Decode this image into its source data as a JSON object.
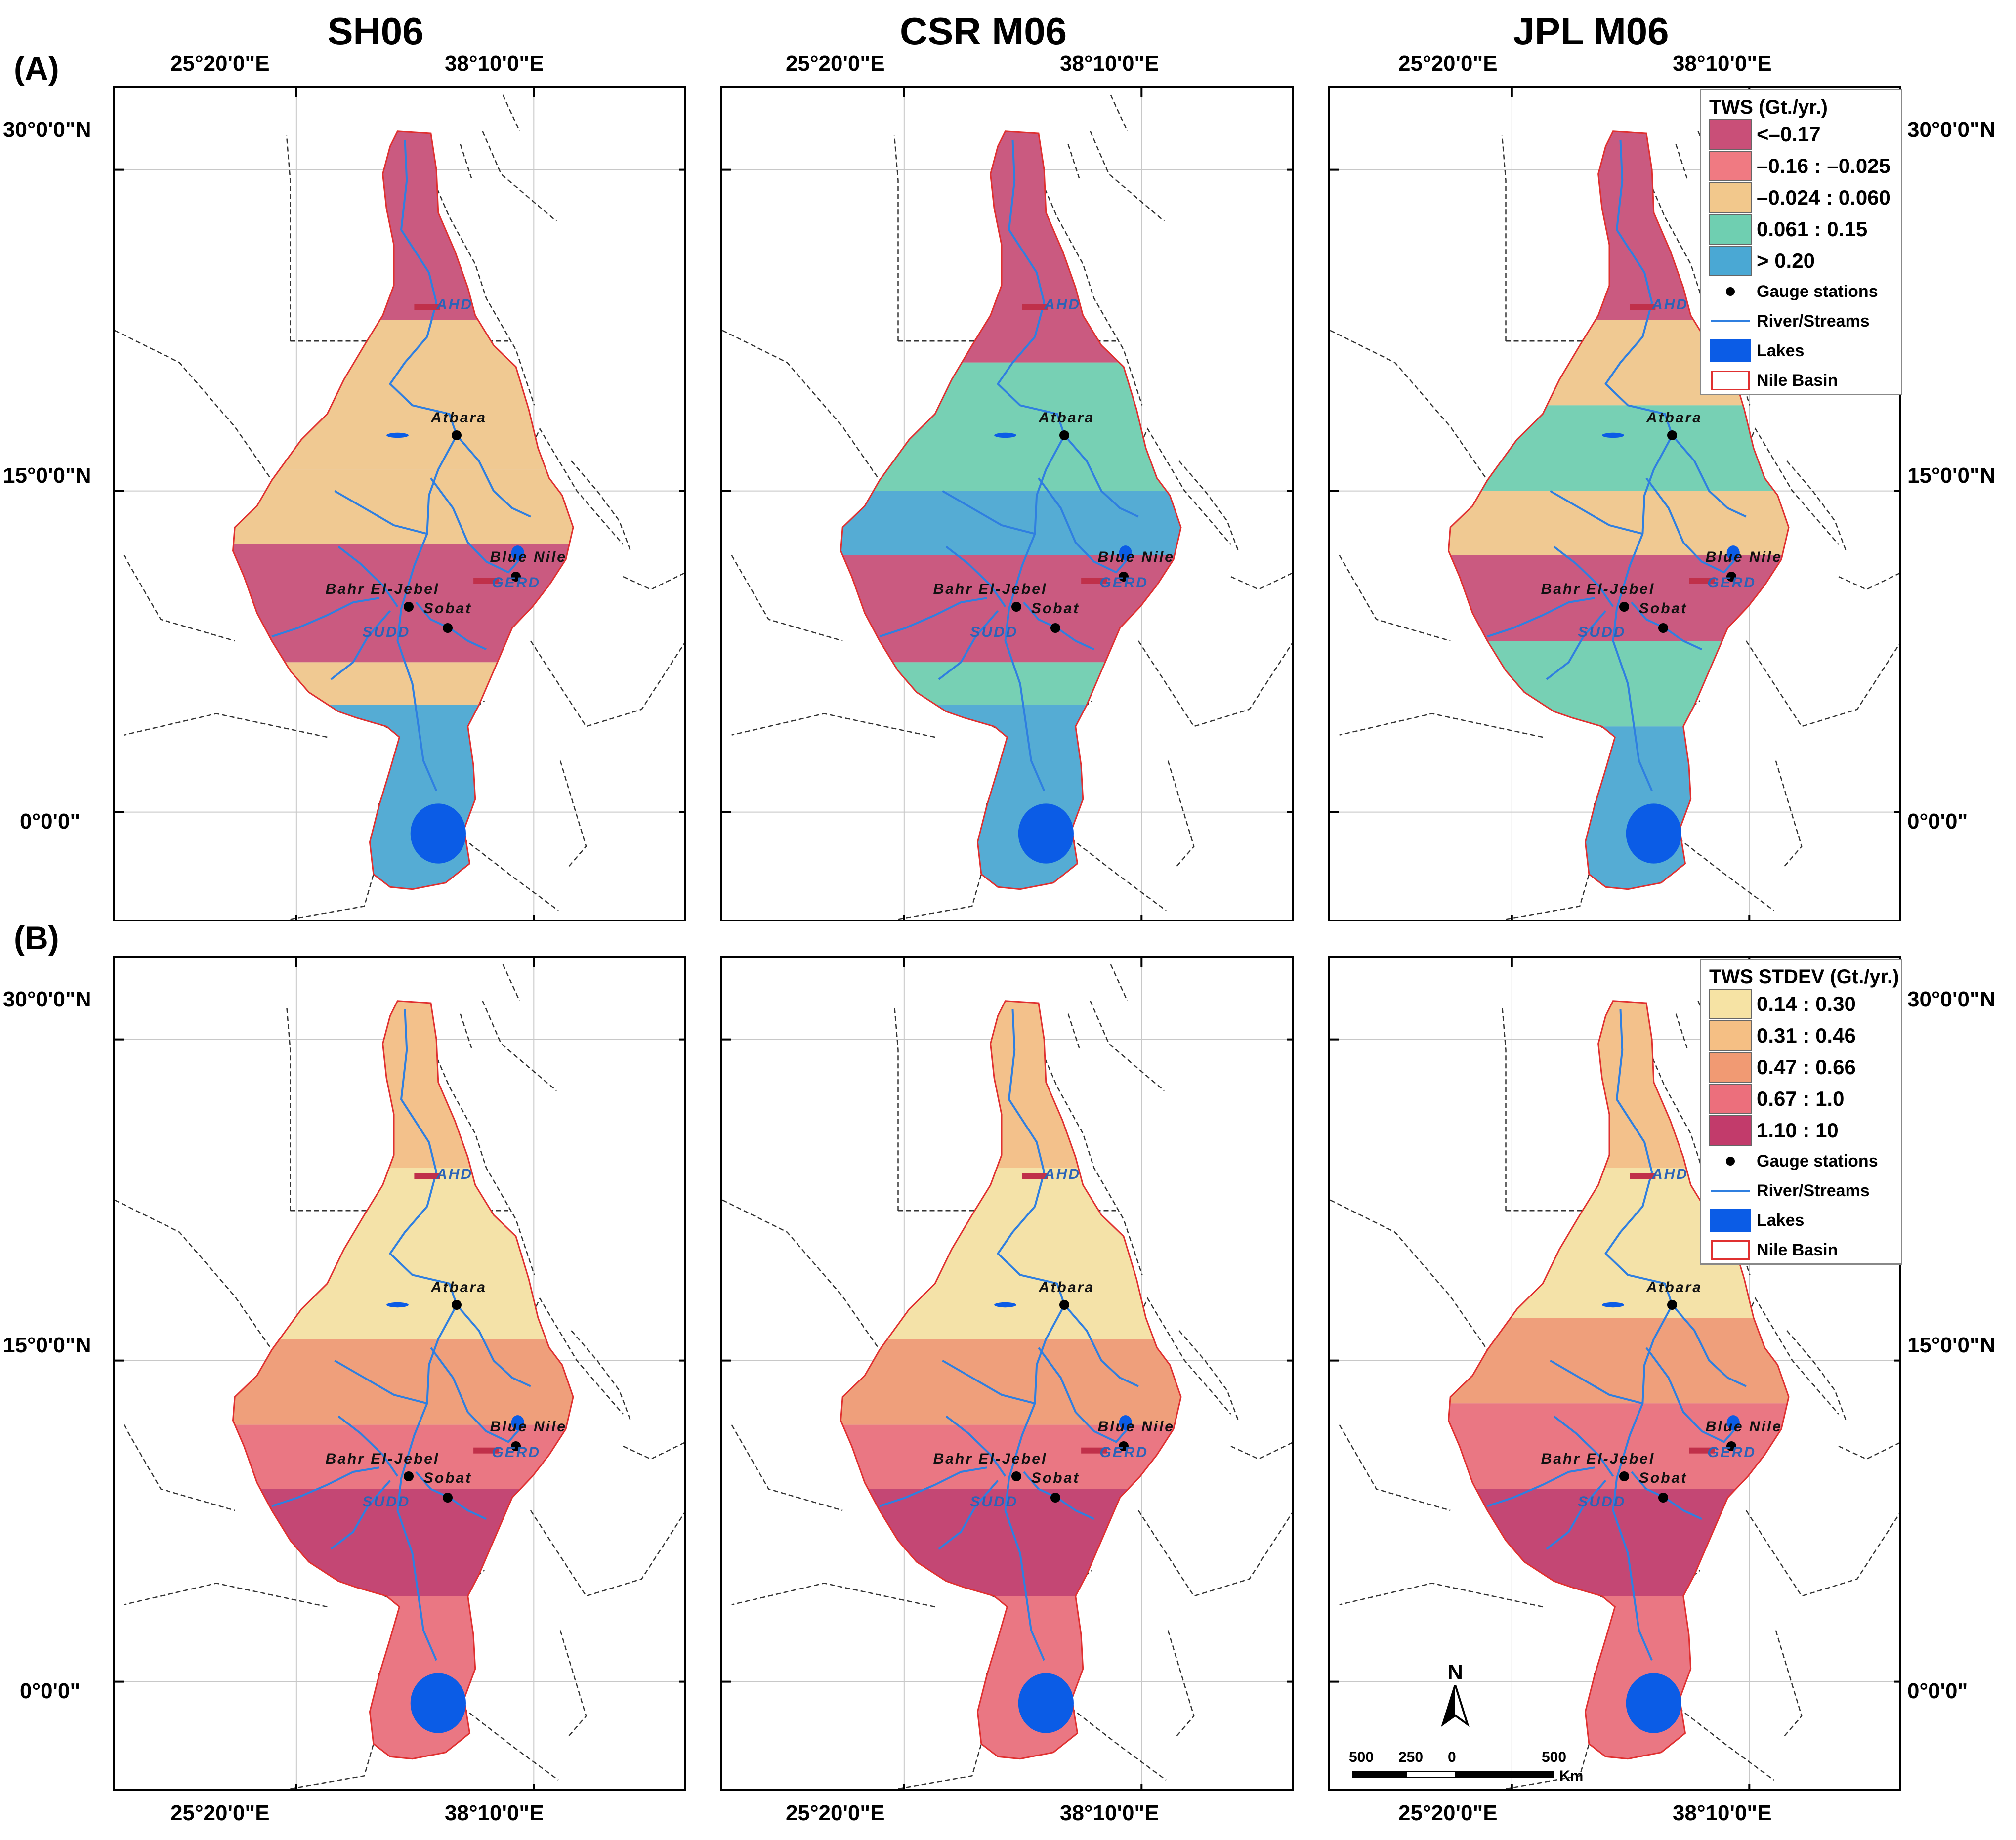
{
  "figure": {
    "columns": [
      {
        "id": "sh06",
        "title": "SH06"
      },
      {
        "id": "csr",
        "title": "CSR M06"
      },
      {
        "id": "jpl",
        "title": "JPL M06"
      }
    ],
    "rows": [
      {
        "id": "a",
        "label": "(A)"
      },
      {
        "id": "b",
        "label": "(B)"
      }
    ]
  },
  "axes": {
    "lon_labels": [
      "25°20'0\"E",
      "38°10'0\"E"
    ],
    "lat_labels": [
      "30°0'0\"N",
      "15°0'0\"N",
      "0°0'0\""
    ]
  },
  "places": {
    "ahd": "AHD",
    "atbara": "Atbara",
    "blue_nile": "Blue Nile",
    "gerd": "GERD",
    "bahr": "Bahr El-Jebel",
    "sobat": "Sobat",
    "sudd": "SUDD"
  },
  "legend_a": {
    "title": "TWS (Gt./yr.)",
    "classes": [
      {
        "label": "<–0.17",
        "color": "#c94f78"
      },
      {
        "label": "–0.16 : –0.025",
        "color": "#f07a82"
      },
      {
        "label": "–0.024 : 0.060",
        "color": "#f2c88c"
      },
      {
        "label": "0.061 : 0.15",
        "color": "#6fcfb1"
      },
      {
        "label": "> 0.20",
        "color": "#4aa8d4"
      }
    ]
  },
  "legend_b": {
    "title": "TWS STDEV (Gt./yr.)",
    "classes": [
      {
        "label": "0.14 : 0.30",
        "color": "#f6e3a4"
      },
      {
        "label": "0.31 : 0.46",
        "color": "#f5bf84"
      },
      {
        "label": "0.47 : 0.66",
        "color": "#f19a73"
      },
      {
        "label": "0.67 : 1.0",
        "color": "#ec6f7c"
      },
      {
        "label": "1.10 : 10",
        "color": "#c23b6b"
      }
    ]
  },
  "legend_symbols": {
    "gauge": "Gauge stations",
    "river": "River/Streams",
    "lakes": "Lakes",
    "basin": "Nile Basin"
  },
  "scale": {
    "north": "N",
    "labels": [
      "500",
      "250",
      "0",
      "500"
    ],
    "unit": "Km"
  },
  "maps": {
    "a": {
      "sh06": [
        {
          "lat": [
            23,
            32
          ],
          "cls": 0
        },
        {
          "lat": [
            16,
            23
          ],
          "cls": 2
        },
        {
          "lat": [
            12.5,
            16
          ],
          "cls": 2
        },
        {
          "lat": [
            7,
            12.5
          ],
          "cls": 0
        },
        {
          "lat": [
            5,
            7
          ],
          "cls": 2
        },
        {
          "lat": [
            -4,
            5
          ],
          "cls": 4
        }
      ],
      "csr": [
        {
          "lat": [
            25,
            32
          ],
          "cls": 0
        },
        {
          "lat": [
            21,
            25
          ],
          "cls": 0
        },
        {
          "lat": [
            15,
            21
          ],
          "cls": 3
        },
        {
          "lat": [
            12,
            15
          ],
          "cls": 4
        },
        {
          "lat": [
            7,
            12
          ],
          "cls": 0
        },
        {
          "lat": [
            5,
            7
          ],
          "cls": 3
        },
        {
          "lat": [
            -4,
            5
          ],
          "cls": 4
        }
      ],
      "jpl": [
        {
          "lat": [
            23,
            32
          ],
          "cls": 0
        },
        {
          "lat": [
            19,
            23
          ],
          "cls": 2
        },
        {
          "lat": [
            15,
            19
          ],
          "cls": 3
        },
        {
          "lat": [
            12,
            15
          ],
          "cls": 2
        },
        {
          "lat": [
            8,
            12
          ],
          "cls": 0
        },
        {
          "lat": [
            4,
            8
          ],
          "cls": 3
        },
        {
          "lat": [
            -4,
            4
          ],
          "cls": 4
        }
      ]
    },
    "b": {
      "sh06": [
        {
          "lat": [
            24,
            32
          ],
          "cls": 1
        },
        {
          "lat": [
            16,
            24
          ],
          "cls": 0
        },
        {
          "lat": [
            12,
            16
          ],
          "cls": 2
        },
        {
          "lat": [
            9,
            12
          ],
          "cls": 3
        },
        {
          "lat": [
            4,
            9
          ],
          "cls": 4
        },
        {
          "lat": [
            -4,
            4
          ],
          "cls": 3
        }
      ],
      "csr": [
        {
          "lat": [
            24,
            32
          ],
          "cls": 1
        },
        {
          "lat": [
            16,
            24
          ],
          "cls": 0
        },
        {
          "lat": [
            12,
            16
          ],
          "cls": 2
        },
        {
          "lat": [
            9,
            12
          ],
          "cls": 3
        },
        {
          "lat": [
            4,
            9
          ],
          "cls": 4
        },
        {
          "lat": [
            -4,
            4
          ],
          "cls": 3
        }
      ],
      "jpl": [
        {
          "lat": [
            24,
            32
          ],
          "cls": 1
        },
        {
          "lat": [
            17,
            24
          ],
          "cls": 0
        },
        {
          "lat": [
            13,
            17
          ],
          "cls": 2
        },
        {
          "lat": [
            9,
            13
          ],
          "cls": 3
        },
        {
          "lat": [
            4,
            9
          ],
          "cls": 4
        },
        {
          "lat": [
            -4,
            4
          ],
          "cls": 3
        }
      ]
    }
  }
}
